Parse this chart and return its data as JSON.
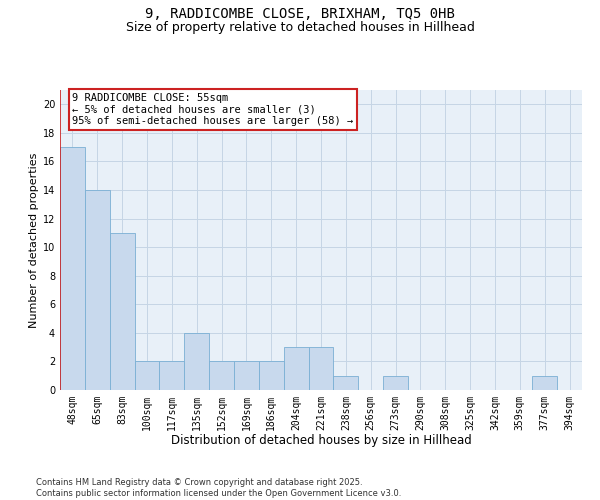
{
  "title": "9, RADDICOMBE CLOSE, BRIXHAM, TQ5 0HB",
  "subtitle": "Size of property relative to detached houses in Hillhead",
  "xlabel": "Distribution of detached houses by size in Hillhead",
  "ylabel": "Number of detached properties",
  "categories": [
    "48sqm",
    "65sqm",
    "83sqm",
    "100sqm",
    "117sqm",
    "135sqm",
    "152sqm",
    "169sqm",
    "186sqm",
    "204sqm",
    "221sqm",
    "238sqm",
    "256sqm",
    "273sqm",
    "290sqm",
    "308sqm",
    "325sqm",
    "342sqm",
    "359sqm",
    "377sqm",
    "394sqm"
  ],
  "values": [
    17,
    14,
    11,
    2,
    2,
    4,
    2,
    2,
    2,
    3,
    3,
    1,
    0,
    1,
    0,
    0,
    0,
    0,
    0,
    1,
    0
  ],
  "bar_color": "#c8d9ed",
  "bar_edge_color": "#7aafd4",
  "marker_line_color": "#cc2222",
  "annotation_text": "9 RADDICOMBE CLOSE: 55sqm\n← 5% of detached houses are smaller (3)\n95% of semi-detached houses are larger (58) →",
  "annotation_box_edge_color": "#cc2222",
  "ylim": [
    0,
    21
  ],
  "yticks": [
    0,
    2,
    4,
    6,
    8,
    10,
    12,
    14,
    16,
    18,
    20
  ],
  "grid_color": "#c5d5e5",
  "background_color": "#e8f0f8",
  "footer": "Contains HM Land Registry data © Crown copyright and database right 2025.\nContains public sector information licensed under the Open Government Licence v3.0.",
  "title_fontsize": 10,
  "subtitle_fontsize": 9,
  "xlabel_fontsize": 8.5,
  "ylabel_fontsize": 8,
  "tick_fontsize": 7,
  "annotation_fontsize": 7.5,
  "footer_fontsize": 6
}
